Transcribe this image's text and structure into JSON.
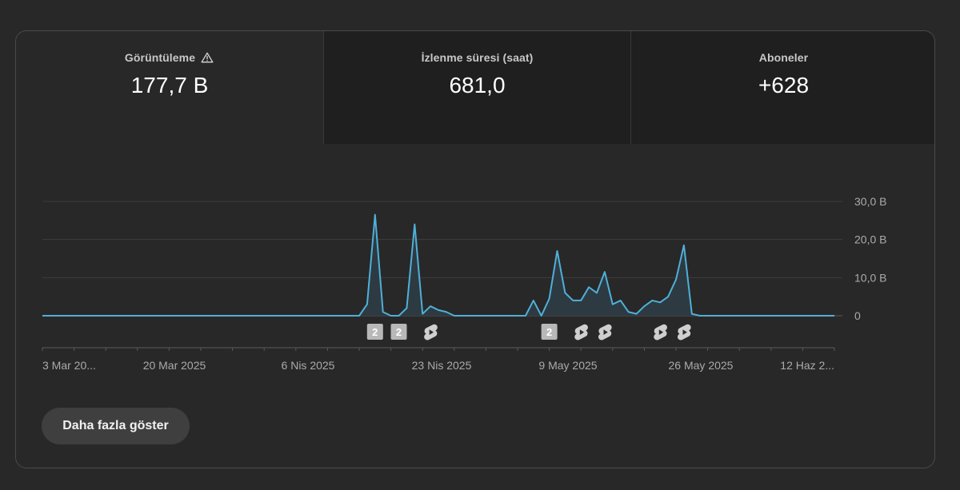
{
  "tabs": [
    {
      "label": "Görüntüleme",
      "value": "177,7 B",
      "icon": "warning-icon"
    },
    {
      "label": "İzlenme süresi (saat)",
      "value": "681,0"
    },
    {
      "label": "Aboneler",
      "value": "+628"
    }
  ],
  "show_more_label": "Daha fazla göster",
  "chart_data": {
    "type": "area",
    "y_unit_suffix": " B",
    "ylim": [
      0,
      30
    ],
    "yticks": [
      0,
      10,
      20,
      30
    ],
    "ytick_labels": [
      "0",
      "10,0 B",
      "20,0 B",
      "30,0 B"
    ],
    "grid": true,
    "x_labels": [
      "3 Mar 20...",
      "20 Mar 2025",
      "6 Nis 2025",
      "23 Nis 2025",
      "9 May 2025",
      "26 May 2025",
      "12 Haz 2..."
    ],
    "line_color": "#4fb0d8",
    "fill_color": "#2d3a42",
    "y": [
      0,
      0,
      0,
      0,
      0,
      0,
      0,
      0,
      0,
      0,
      0,
      0,
      0,
      0,
      0,
      0,
      0,
      0,
      0,
      0,
      0,
      0,
      0,
      0,
      0,
      0,
      0,
      0,
      0,
      0,
      0,
      0,
      0,
      0,
      0,
      0,
      0,
      0,
      0,
      0,
      0,
      3,
      26.5,
      1,
      0,
      0,
      2,
      24,
      0.5,
      2.5,
      1.5,
      1,
      0,
      0,
      0,
      0,
      0,
      0,
      0,
      0,
      0,
      0,
      4,
      0,
      4.5,
      17,
      6,
      4,
      4,
      7.5,
      6,
      11.5,
      3,
      4,
      1,
      0.5,
      2.5,
      4,
      3.5,
      5,
      9.5,
      18.5,
      0.5,
      0,
      0,
      0,
      0,
      0,
      0,
      0,
      0,
      0,
      0,
      0,
      0,
      0,
      0,
      0,
      0,
      0,
      0
    ],
    "markers": [
      {
        "index": 42,
        "type": "badge",
        "text": "2"
      },
      {
        "index": 45,
        "type": "badge",
        "text": "2"
      },
      {
        "index": 49,
        "type": "shorts"
      },
      {
        "index": 64,
        "type": "badge",
        "text": "2"
      },
      {
        "index": 68,
        "type": "shorts"
      },
      {
        "index": 71,
        "type": "shorts"
      },
      {
        "index": 78,
        "type": "shorts"
      },
      {
        "index": 81,
        "type": "shorts"
      }
    ]
  }
}
